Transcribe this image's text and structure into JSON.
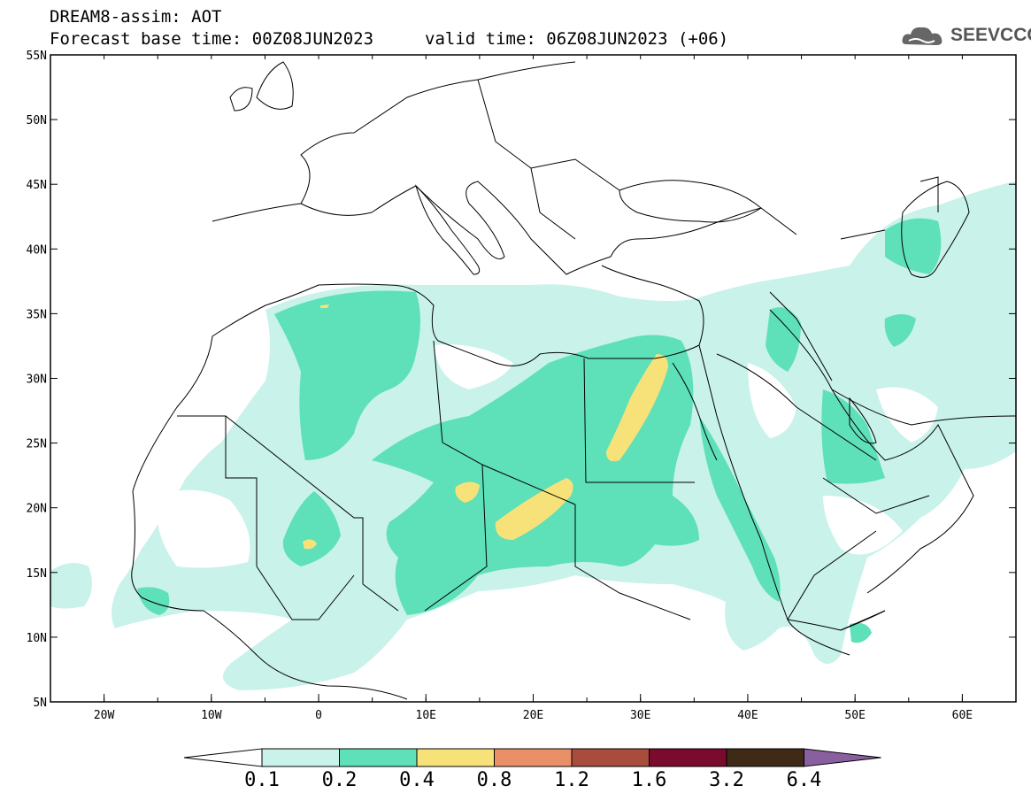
{
  "header": {
    "line1": "DREAM8-assim: AOT",
    "line2": "Forecast base time: 00Z08JUN2023",
    "valid": "valid time: 06Z08JUN2023 (+06)"
  },
  "logo": {
    "text": "SEEVCCC",
    "icon": "cloud-icon"
  },
  "map": {
    "lon_range": [
      -25,
      65
    ],
    "lat_range": [
      5,
      55
    ],
    "lat_ticks": [
      "5N",
      "10N",
      "15N",
      "20N",
      "25N",
      "30N",
      "35N",
      "40N",
      "45N",
      "50N",
      "55N"
    ],
    "lon_ticks": [
      "20W",
      "10W",
      "0",
      "10E",
      "20E",
      "30E",
      "40E",
      "50E",
      "60E"
    ]
  },
  "colorbar": {
    "labels": [
      "0.1",
      "0.2",
      "0.4",
      "0.8",
      "1.2",
      "1.6",
      "3.2",
      "6.4"
    ],
    "colors": [
      "#ffffff",
      "#c8f2ea",
      "#5ee0b8",
      "#f7e27a",
      "#ea9068",
      "#a84c3e",
      "#7a0a2e",
      "#3e2a16",
      "#8a5fa0"
    ]
  }
}
